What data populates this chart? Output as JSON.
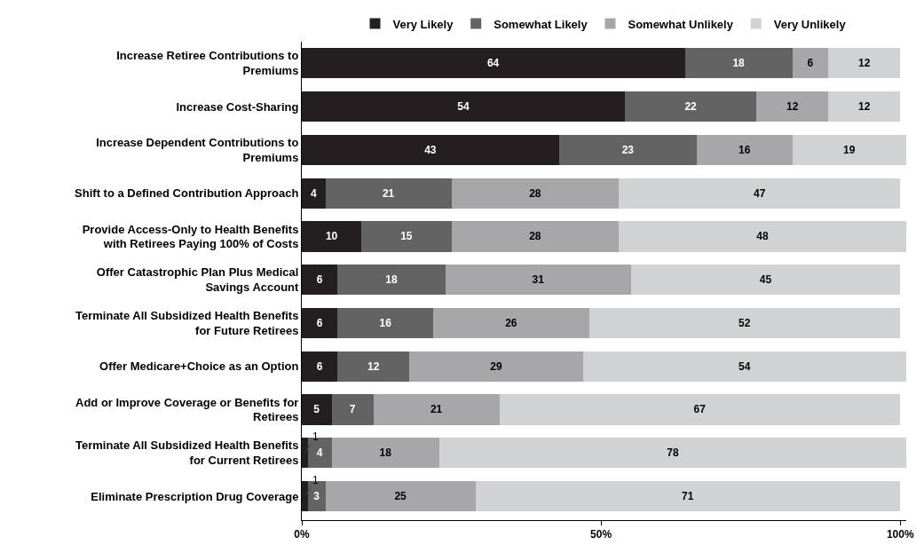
{
  "chart_data": {
    "type": "bar",
    "orientation": "horizontal",
    "stacked": true,
    "data_labels": true,
    "legend": "top",
    "grid": false,
    "categories": [
      "Increase Retiree Contributions to Premiums",
      "Increase Cost-Sharing",
      "Increase Dependent Contributions to Premiums",
      "Shift to a Defined Contribution Approach",
      "Provide Access-Only to Health Benefits with Retirees Paying 100% of Costs",
      "Offer Catastrophic Plan Plus Medical Savings Account",
      "Terminate All Subsidized Health Benefits for Future Retirees",
      "Offer Medicare+Choice as an Option",
      "Add or Improve Coverage or Benefits for Retirees",
      "Terminate All Subsidized Health Benefits for Current Retirees",
      "Eliminate Prescription Drug Coverage"
    ],
    "series": [
      {
        "name": "Very Likely",
        "color": "#231f20",
        "values": [
          64,
          54,
          43,
          4,
          10,
          6,
          6,
          6,
          5,
          1,
          1
        ]
      },
      {
        "name": "Somewhat Likely",
        "color": "#636363",
        "values": [
          18,
          22,
          23,
          21,
          15,
          18,
          16,
          12,
          7,
          4,
          3
        ]
      },
      {
        "name": "Somewhat Unlikely",
        "color": "#a7a7a9",
        "values": [
          6,
          12,
          16,
          28,
          28,
          31,
          26,
          29,
          21,
          18,
          25
        ]
      },
      {
        "name": "Very Unlikely",
        "color": "#d1d2d4",
        "values": [
          12,
          12,
          19,
          47,
          48,
          45,
          52,
          54,
          67,
          78,
          71
        ]
      }
    ],
    "xlim": [
      0,
      101
    ],
    "xticks": [
      {
        "value": 0,
        "label": "0%"
      },
      {
        "value": 50,
        "label": "50%"
      },
      {
        "value": 100,
        "label": "100%"
      }
    ]
  }
}
